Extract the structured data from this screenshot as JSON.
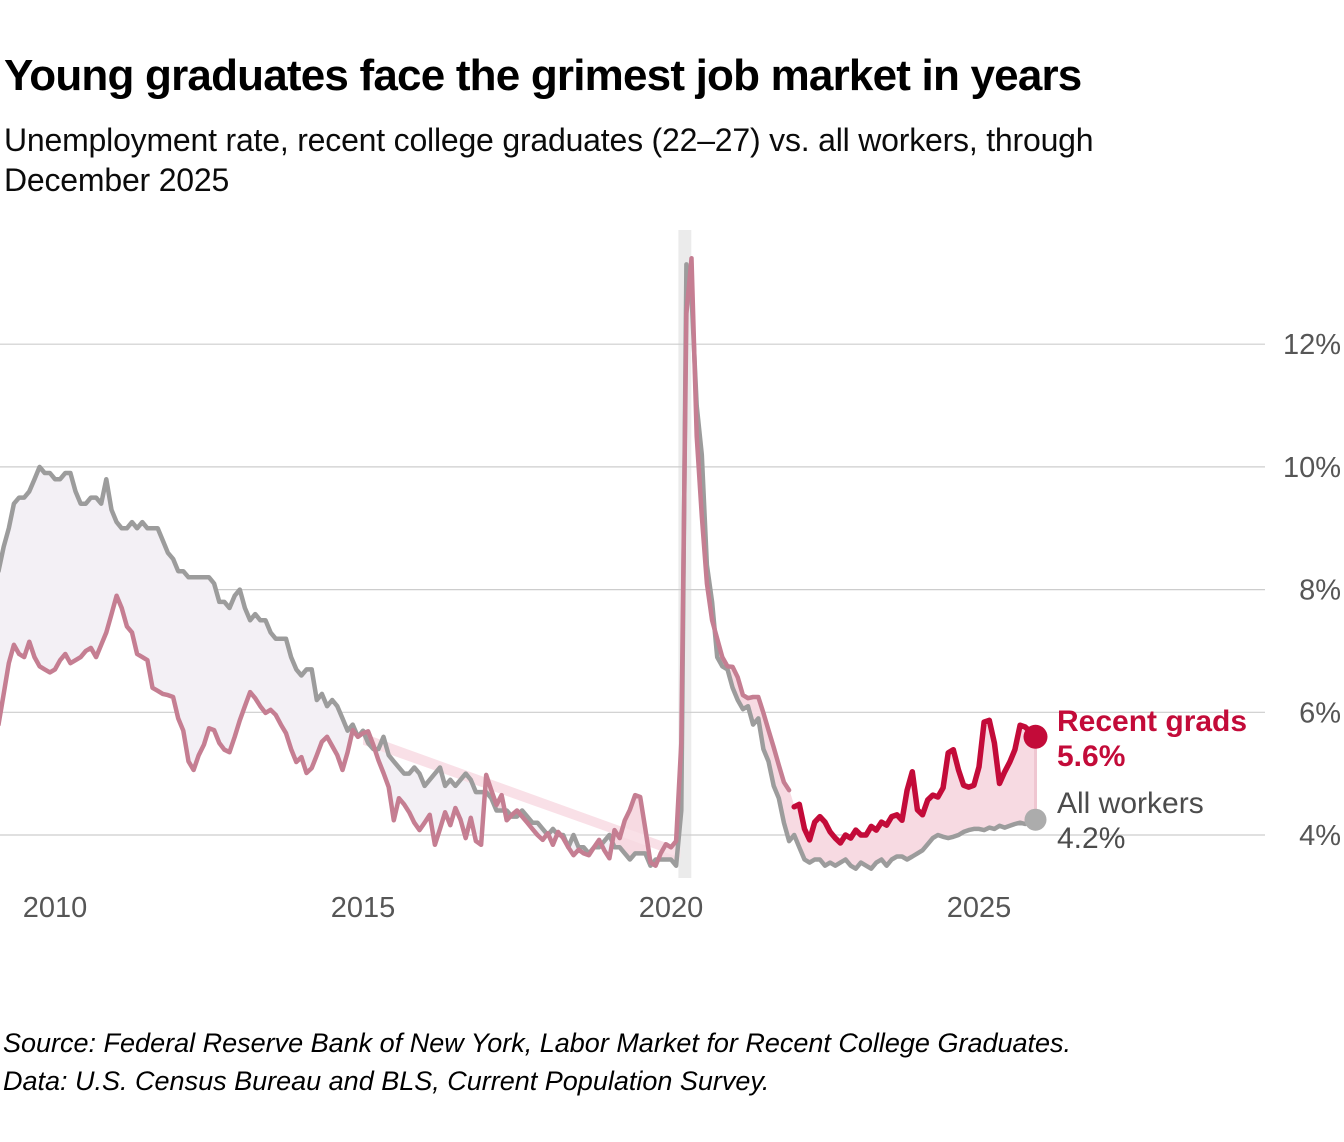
{
  "header": {
    "title": "Young graduates face the grimest job market in years",
    "subtitle": "Unemployment rate, recent college graduates (22–27) vs. all workers, through December 2025"
  },
  "annotations": {
    "recent_grads": {
      "label": "Recent grads",
      "value": "5.6%"
    },
    "all_workers": {
      "label": "All workers",
      "value": "4.2%"
    }
  },
  "footer": {
    "line1": "Source: Federal Reserve Bank of New York, Labor Market for Recent College Graduates.",
    "line2": "Data: U.S. Census Bureau and BLS, Current Population Survey."
  },
  "colors": {
    "recent_grads": "#C30B39",
    "recent_grads_muted": "#C57E92",
    "all_workers": "#9C9C9C",
    "all_workers_dot": "#ACACAC",
    "fill_pink": "#F7DAE2",
    "fill_lavender": "#F3F0F5",
    "wedge_pink": "#F9E0E7",
    "fill_end_edge": "#EFC6D1",
    "gridline": "#CDCDCD",
    "recession_band": "#EBEBEB",
    "axis_text": "#565656"
  },
  "chart_data": {
    "type": "line",
    "unit": "percent",
    "frequency": "monthly",
    "start": {
      "year": 2009,
      "month": 2
    },
    "end": {
      "year": 2025,
      "month": 12
    },
    "x_ticks": [
      2010,
      2015,
      2020,
      2025
    ],
    "y_ticks": [
      {
        "value": 12,
        "label": "12%"
      },
      {
        "value": 10,
        "label": "10%"
      },
      {
        "value": 8,
        "label": "8%"
      },
      {
        "value": 6,
        "label": "6%"
      },
      {
        "value": 4,
        "label": "4%"
      }
    ],
    "recession_band": {
      "from_year": 2020.12,
      "to_year": 2020.33
    },
    "highlight_from": {
      "year": 2022,
      "month": 1
    },
    "wedge_artifact": [
      [
        2015.0,
        5.66
      ],
      [
        2020.15,
        3.79
      ],
      [
        2020.15,
        3.63
      ],
      [
        2015.0,
        5.47
      ]
    ],
    "series": [
      {
        "name": "Recent grads",
        "end_label": "5.6%",
        "values": [
          5.8,
          6.3,
          6.8,
          7.1,
          6.95,
          6.9,
          7.15,
          6.9,
          6.75,
          6.7,
          6.65,
          6.7,
          6.85,
          6.95,
          6.8,
          6.85,
          6.9,
          7.0,
          7.05,
          6.9,
          7.1,
          7.3,
          7.6,
          7.9,
          7.7,
          7.4,
          7.3,
          6.95,
          6.9,
          6.85,
          6.4,
          6.35,
          6.3,
          6.28,
          6.25,
          5.9,
          5.7,
          5.2,
          5.06,
          5.3,
          5.47,
          5.74,
          5.71,
          5.5,
          5.39,
          5.35,
          5.6,
          5.87,
          6.1,
          6.33,
          6.23,
          6.1,
          5.99,
          6.04,
          5.96,
          5.8,
          5.66,
          5.4,
          5.19,
          5.27,
          5.01,
          5.09,
          5.3,
          5.52,
          5.6,
          5.45,
          5.3,
          5.06,
          5.35,
          5.71,
          5.6,
          5.66,
          5.69,
          5.47,
          5.22,
          5.01,
          4.78,
          4.24,
          4.6,
          4.5,
          4.37,
          4.2,
          4.08,
          4.2,
          4.33,
          3.84,
          4.1,
          4.37,
          4.16,
          4.44,
          4.25,
          3.95,
          4.28,
          3.9,
          3.84,
          4.98,
          4.73,
          4.49,
          4.65,
          4.24,
          4.33,
          4.4,
          4.3,
          4.2,
          4.1,
          4.0,
          3.92,
          4.03,
          3.84,
          4.05,
          3.95,
          3.8,
          3.67,
          3.76,
          3.7,
          3.67,
          3.8,
          3.92,
          3.75,
          3.62,
          4.08,
          3.95,
          4.24,
          4.41,
          4.65,
          4.62,
          4.1,
          3.55,
          3.5,
          3.7,
          3.85,
          3.8,
          3.9,
          5.5,
          12.5,
          13.4,
          10.5,
          9.2,
          8.1,
          7.5,
          7.2,
          6.9,
          6.75,
          6.74,
          6.57,
          6.28,
          6.23,
          6.25,
          6.25,
          5.99,
          5.71,
          5.43,
          5.14,
          4.86,
          4.73,
          4.46,
          4.5,
          4.1,
          3.92,
          4.21,
          4.3,
          4.21,
          4.05,
          3.95,
          3.87,
          4.0,
          3.95,
          4.08,
          4.0,
          4.0,
          4.14,
          4.08,
          4.21,
          4.16,
          4.3,
          4.33,
          4.24,
          4.73,
          5.03,
          4.41,
          4.33,
          4.57,
          4.65,
          4.62,
          4.77,
          5.34,
          5.39,
          5.06,
          4.81,
          4.78,
          4.81,
          5.11,
          5.84,
          5.87,
          5.5,
          4.84,
          5.03,
          5.19,
          5.39,
          5.79,
          5.76,
          5.68,
          5.6
        ]
      },
      {
        "name": "All workers",
        "end_label": "4.2%",
        "values": [
          8.3,
          8.7,
          9.0,
          9.4,
          9.5,
          9.5,
          9.6,
          9.8,
          10.0,
          9.9,
          9.9,
          9.8,
          9.8,
          9.9,
          9.9,
          9.6,
          9.4,
          9.4,
          9.5,
          9.5,
          9.4,
          9.8,
          9.3,
          9.1,
          9.0,
          9.0,
          9.1,
          9.0,
          9.1,
          9.0,
          9.0,
          9.0,
          8.8,
          8.6,
          8.5,
          8.3,
          8.3,
          8.2,
          8.2,
          8.2,
          8.2,
          8.2,
          8.1,
          7.8,
          7.8,
          7.7,
          7.9,
          8.0,
          7.7,
          7.5,
          7.6,
          7.5,
          7.5,
          7.3,
          7.2,
          7.2,
          7.2,
          6.9,
          6.7,
          6.6,
          6.7,
          6.7,
          6.2,
          6.3,
          6.1,
          6.2,
          6.1,
          5.9,
          5.7,
          5.8,
          5.6,
          5.7,
          5.5,
          5.4,
          5.4,
          5.6,
          5.3,
          5.2,
          5.1,
          5.0,
          5.0,
          5.1,
          5.0,
          4.8,
          4.9,
          5.0,
          5.1,
          4.8,
          4.9,
          4.8,
          4.9,
          5.0,
          4.9,
          4.7,
          4.7,
          4.7,
          4.6,
          4.4,
          4.4,
          4.4,
          4.3,
          4.3,
          4.4,
          4.3,
          4.2,
          4.2,
          4.1,
          4.0,
          4.1,
          4.0,
          4.0,
          3.8,
          4.0,
          3.8,
          3.8,
          3.7,
          3.8,
          3.8,
          3.9,
          4.0,
          3.8,
          3.8,
          3.7,
          3.6,
          3.7,
          3.7,
          3.7,
          3.5,
          3.6,
          3.6,
          3.6,
          3.6,
          3.5,
          4.4,
          13.3,
          12.8,
          11.0,
          10.2,
          8.4,
          7.8,
          6.9,
          6.75,
          6.7,
          6.4,
          6.2,
          6.05,
          6.1,
          5.8,
          5.9,
          5.4,
          5.2,
          4.8,
          4.6,
          4.2,
          3.9,
          4.0,
          3.8,
          3.6,
          3.55,
          3.6,
          3.6,
          3.5,
          3.55,
          3.5,
          3.55,
          3.6,
          3.5,
          3.45,
          3.55,
          3.5,
          3.45,
          3.55,
          3.6,
          3.5,
          3.6,
          3.65,
          3.65,
          3.6,
          3.65,
          3.7,
          3.75,
          3.85,
          3.95,
          4.0,
          3.97,
          3.95,
          3.97,
          4.0,
          4.05,
          4.08,
          4.1,
          4.1,
          4.08,
          4.12,
          4.1,
          4.15,
          4.12,
          4.15,
          4.18,
          4.2,
          4.18,
          4.22,
          4.25
        ]
      }
    ]
  }
}
